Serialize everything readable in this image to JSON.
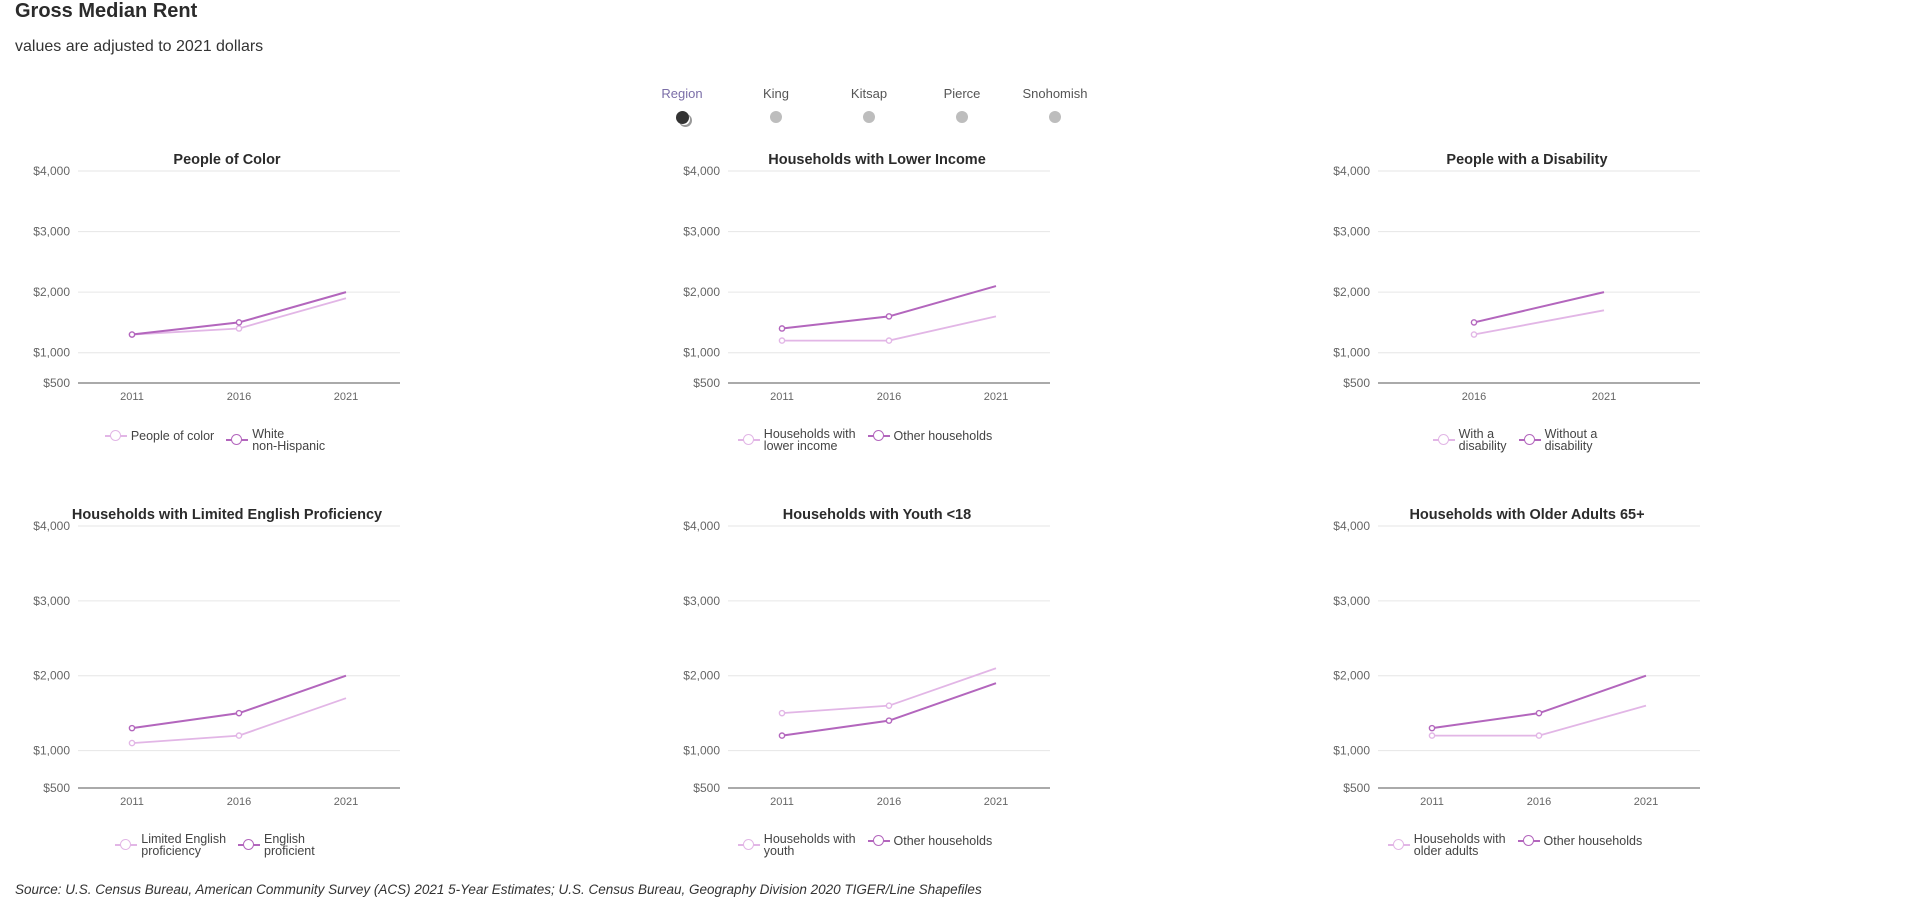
{
  "title": "Gross Median Rent",
  "subtitle": "values are adjusted to 2021 dollars",
  "selector": {
    "selected": "Region",
    "options": [
      "Region",
      "King",
      "Kitsap",
      "Pierce",
      "Snohomish"
    ]
  },
  "colors": {
    "light": "#e2b6e6",
    "dark": "#b366bd",
    "grid": "#e6e6e6",
    "axis": "#555555"
  },
  "chart_data": [
    {
      "type": "line",
      "title": "People of Color",
      "x": [
        2011,
        2016,
        2021
      ],
      "y_ticks": [
        "$4,000",
        "$3,000",
        "$2,000",
        "$1,000",
        "$500"
      ],
      "ylim": [
        500,
        4000
      ],
      "series": [
        {
          "name": "People of color",
          "values": [
            1300,
            1400,
            1900
          ]
        },
        {
          "name": "White non-Hispanic",
          "values": [
            1300,
            1500,
            2000
          ]
        }
      ],
      "legend": [
        [
          "People of color"
        ],
        [
          "White",
          "non-Hispanic"
        ]
      ]
    },
    {
      "type": "line",
      "title": "Households with Lower Income",
      "x": [
        2011,
        2016,
        2021
      ],
      "y_ticks": [
        "$4,000",
        "$3,000",
        "$2,000",
        "$1,000",
        "$500"
      ],
      "ylim": [
        500,
        4000
      ],
      "series": [
        {
          "name": "Households with lower income",
          "values": [
            1200,
            1200,
            1600
          ]
        },
        {
          "name": "Other households",
          "values": [
            1400,
            1600,
            2100
          ]
        }
      ],
      "legend": [
        [
          "Households with",
          "lower income"
        ],
        [
          "Other households"
        ]
      ]
    },
    {
      "type": "line",
      "title": "People with a Disability",
      "x": [
        2016,
        2021
      ],
      "y_ticks": [
        "$4,000",
        "$3,000",
        "$2,000",
        "$1,000",
        "$500"
      ],
      "ylim": [
        500,
        4000
      ],
      "series": [
        {
          "name": "With a disability",
          "values": [
            1300,
            1700
          ]
        },
        {
          "name": "Without a disability",
          "values": [
            1500,
            2000
          ]
        }
      ],
      "legend": [
        [
          "With a",
          "disability"
        ],
        [
          "Without a",
          "disability"
        ]
      ]
    },
    {
      "type": "line",
      "title": "Households with Limited English Proficiency",
      "x": [
        2011,
        2016,
        2021
      ],
      "y_ticks": [
        "$4,000",
        "$3,000",
        "$2,000",
        "$1,000",
        "$500"
      ],
      "ylim": [
        500,
        4000
      ],
      "series": [
        {
          "name": "Limited English proficiency",
          "values": [
            1100,
            1200,
            1700
          ]
        },
        {
          "name": "English proficient",
          "values": [
            1300,
            1500,
            2000
          ]
        }
      ],
      "legend": [
        [
          "Limited English",
          "proficiency"
        ],
        [
          "English",
          "proficient"
        ]
      ]
    },
    {
      "type": "line",
      "title": "Households with Youth <18",
      "x": [
        2011,
        2016,
        2021
      ],
      "y_ticks": [
        "$4,000",
        "$3,000",
        "$2,000",
        "$1,000",
        "$500"
      ],
      "ylim": [
        500,
        4000
      ],
      "series": [
        {
          "name": "Households with youth",
          "values": [
            1500,
            1600,
            2100
          ]
        },
        {
          "name": "Other households",
          "values": [
            1200,
            1400,
            1900
          ]
        }
      ],
      "legend": [
        [
          "Households with",
          "youth"
        ],
        [
          "Other households"
        ]
      ]
    },
    {
      "type": "line",
      "title": "Households with Older Adults 65+",
      "x": [
        2011,
        2016,
        2021
      ],
      "y_ticks": [
        "$4,000",
        "$3,000",
        "$2,000",
        "$1,000",
        "$500"
      ],
      "ylim": [
        500,
        4000
      ],
      "series": [
        {
          "name": "Households with older adults",
          "values": [
            1200,
            1200,
            1600
          ]
        },
        {
          "name": "Other households",
          "values": [
            1300,
            1500,
            2000
          ]
        }
      ],
      "legend": [
        [
          "Households with",
          "older adults"
        ],
        [
          "Other households"
        ]
      ]
    }
  ],
  "source": "Source: U.S. Census Bureau, American Community Survey (ACS) 2021 5-Year Estimates; U.S. Census Bureau, Geography Division 2020 TIGER/Line Shapefiles"
}
